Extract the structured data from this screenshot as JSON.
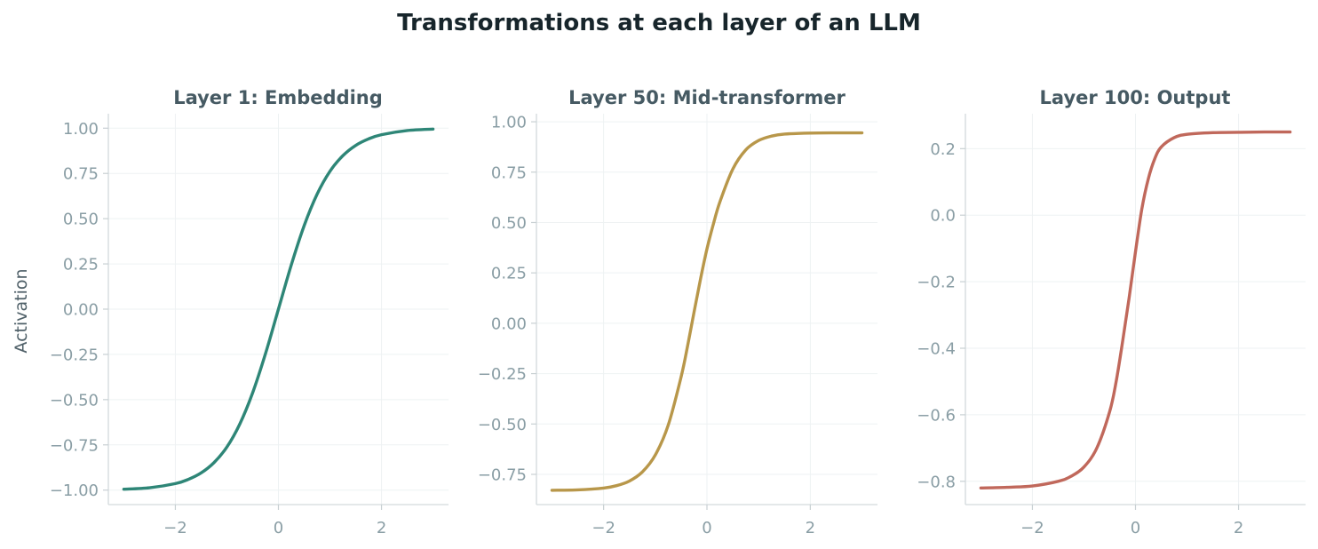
{
  "figure": {
    "title": "Transformations at each layer of an LLM"
  },
  "chart_data": [
    {
      "type": "line",
      "title": "Layer 1: Embedding",
      "xlabel": "",
      "ylabel": "Activation",
      "xlim": [
        -3.3,
        3.3
      ],
      "ylim": [
        -1.08,
        1.08
      ],
      "xticks": [
        -2,
        0,
        2
      ],
      "xtick_labels": [
        "−2",
        "0",
        "2"
      ],
      "yticks": [
        -1.0,
        -0.75,
        -0.5,
        -0.25,
        0.0,
        0.25,
        0.5,
        0.75,
        1.0
      ],
      "ytick_labels": [
        "−1.00",
        "−0.75",
        "−0.50",
        "−0.25",
        "0.00",
        "0.25",
        "0.50",
        "0.75",
        "1.00"
      ],
      "grid": true,
      "color": "#2e8677",
      "series": [
        {
          "x": [
            -3.0,
            -2.5,
            -2.0,
            -1.75,
            -1.5,
            -1.25,
            -1.0,
            -0.75,
            -0.5,
            -0.25,
            0.0,
            0.25,
            0.5,
            0.75,
            1.0,
            1.25,
            1.5,
            1.75,
            2.0,
            2.5,
            3.0
          ],
          "y": [
            -0.995,
            -0.987,
            -0.964,
            -0.941,
            -0.905,
            -0.848,
            -0.762,
            -0.635,
            -0.462,
            -0.245,
            0.0,
            0.245,
            0.462,
            0.635,
            0.762,
            0.848,
            0.905,
            0.941,
            0.964,
            0.987,
            0.995
          ]
        }
      ]
    },
    {
      "type": "line",
      "title": "Layer 50: Mid-transformer",
      "xlabel": "",
      "ylabel": "",
      "xlim": [
        -3.3,
        3.3
      ],
      "ylim": [
        -0.9,
        1.04
      ],
      "xticks": [
        -2,
        0,
        2
      ],
      "xtick_labels": [
        "−2",
        "0",
        "2"
      ],
      "yticks": [
        -0.75,
        -0.5,
        -0.25,
        0.0,
        0.25,
        0.5,
        0.75,
        1.0
      ],
      "ytick_labels": [
        "−0.75",
        "−0.50",
        "−0.25",
        "0.00",
        "0.25",
        "0.50",
        "0.75",
        "1.00"
      ],
      "grid": true,
      "color": "#b8974a",
      "series": [
        {
          "x": [
            -3.0,
            -2.5,
            -2.0,
            -1.75,
            -1.5,
            -1.25,
            -1.0,
            -0.75,
            -0.5,
            -0.375,
            -0.25,
            -0.125,
            0.0,
            0.125,
            0.25,
            0.5,
            0.75,
            1.0,
            1.25,
            1.5,
            2.0,
            2.5,
            3.0
          ],
          "y": [
            -0.829,
            -0.827,
            -0.818,
            -0.806,
            -0.783,
            -0.738,
            -0.654,
            -0.506,
            -0.266,
            -0.113,
            0.055,
            0.219,
            0.369,
            0.493,
            0.602,
            0.765,
            0.86,
            0.907,
            0.929,
            0.939,
            0.944,
            0.945,
            0.945
          ]
        }
      ]
    },
    {
      "type": "line",
      "title": "Layer 100: Output",
      "xlabel": "",
      "ylabel": "",
      "xlim": [
        -3.3,
        3.3
      ],
      "ylim": [
        -0.87,
        0.305
      ],
      "xticks": [
        -2,
        0,
        2
      ],
      "xtick_labels": [
        "−2",
        "0",
        "2"
      ],
      "yticks": [
        -0.8,
        -0.6,
        -0.4,
        -0.2,
        0.0,
        0.2
      ],
      "ytick_labels": [
        "−0.8",
        "−0.6",
        "−0.4",
        "−0.2",
        "0.0",
        "0.2"
      ],
      "grid": true,
      "color": "#c0685b",
      "series": [
        {
          "x": [
            -3.0,
            -2.5,
            -2.0,
            -1.5,
            -1.25,
            -1.0,
            -0.75,
            -0.5,
            -0.375,
            -0.25,
            -0.125,
            0.0,
            0.125,
            0.25,
            0.375,
            0.5,
            0.75,
            1.0,
            1.5,
            2.0,
            2.5,
            3.0
          ],
          "y": [
            -0.82,
            -0.818,
            -0.814,
            -0.8,
            -0.785,
            -0.757,
            -0.7,
            -0.59,
            -0.5,
            -0.38,
            -0.25,
            -0.11,
            0.02,
            0.11,
            0.17,
            0.205,
            0.233,
            0.243,
            0.248,
            0.249,
            0.25,
            0.25
          ]
        }
      ]
    }
  ]
}
